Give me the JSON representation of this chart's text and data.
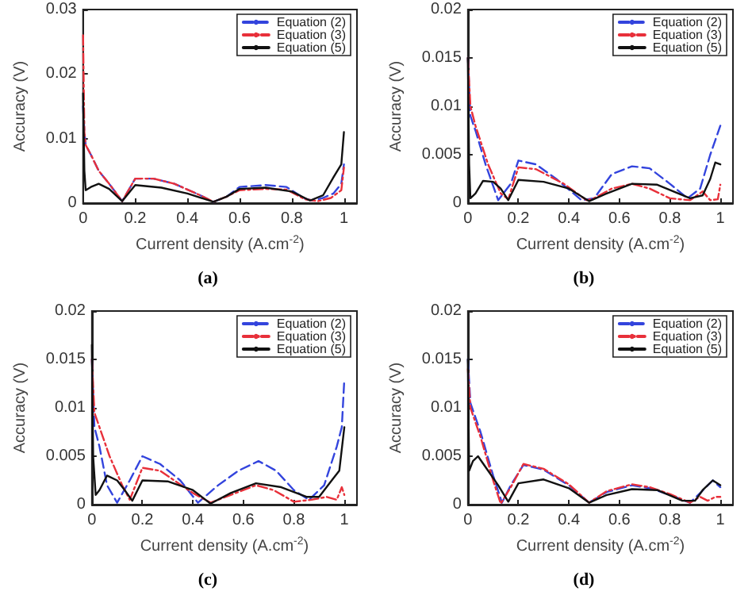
{
  "chart_data": [
    {
      "type": "line",
      "title": "(a)",
      "xlabel": "Current density (A.cm$^{-2}$)",
      "ylabel": "Accuracy (V)",
      "xlim": [
        0,
        1.05
      ],
      "xticks": [
        0,
        0.2,
        0.4,
        0.6,
        0.8,
        1
      ],
      "ylim": [
        0,
        0.03
      ],
      "yticks": [
        0,
        0.01,
        0.02,
        0.03
      ],
      "grid": false,
      "legend": "top right",
      "marker": "none",
      "series": [
        {
          "name": "Equation (2)",
          "color": "#3344dd",
          "line_style": "dashed",
          "x": [
            0,
            0.005,
            0.01,
            0.03,
            0.06,
            0.1,
            0.15,
            0.2,
            0.27,
            0.35,
            0.45,
            0.5,
            0.55,
            0.6,
            0.7,
            0.78,
            0.85,
            0.88,
            0.92,
            0.96,
            0.99,
            1.0
          ],
          "values": [
            0.015,
            0.011,
            0.009,
            0.0075,
            0.005,
            0.003,
            0.0003,
            0.0038,
            0.0038,
            0.003,
            0.0012,
            0.0002,
            0.001,
            0.0025,
            0.0028,
            0.0025,
            0.0007,
            0.0004,
            0.0008,
            0.0015,
            0.003,
            0.006
          ]
        },
        {
          "name": "Equation (3)",
          "color": "#e8303a",
          "line_style": "dashdot",
          "x": [
            0,
            0.005,
            0.01,
            0.03,
            0.06,
            0.1,
            0.15,
            0.2,
            0.27,
            0.35,
            0.45,
            0.5,
            0.55,
            0.6,
            0.7,
            0.78,
            0.85,
            0.9,
            0.95,
            0.99,
            1.0
          ],
          "values": [
            0.026,
            0.011,
            0.009,
            0.0075,
            0.005,
            0.003,
            0.0003,
            0.0038,
            0.0038,
            0.003,
            0.0012,
            0.0002,
            0.001,
            0.002,
            0.0022,
            0.0021,
            0.0006,
            0.0003,
            0.0008,
            0.002,
            0.0055
          ]
        },
        {
          "name": "Equation (5)",
          "color": "#111111",
          "line_style": "solid",
          "x": [
            0,
            0.005,
            0.01,
            0.03,
            0.06,
            0.1,
            0.15,
            0.2,
            0.3,
            0.4,
            0.5,
            0.55,
            0.6,
            0.7,
            0.8,
            0.87,
            0.92,
            0.96,
            0.99,
            1.0
          ],
          "values": [
            0.017,
            0.005,
            0.002,
            0.0025,
            0.003,
            0.0022,
            0.0003,
            0.0028,
            0.0024,
            0.0015,
            0.0002,
            0.001,
            0.0022,
            0.0024,
            0.0018,
            0.0004,
            0.0012,
            0.004,
            0.006,
            0.011
          ]
        }
      ]
    },
    {
      "type": "line",
      "title": "(b)",
      "xlabel": "Current density (A.cm$^{-2}$)",
      "ylabel": "Accuracy (V)",
      "xlim": [
        0,
        1.05
      ],
      "xticks": [
        0,
        0.2,
        0.4,
        0.6,
        0.8,
        1
      ],
      "ylim": [
        0,
        0.02
      ],
      "yticks": [
        0,
        0.005,
        0.01,
        0.015,
        0.02
      ],
      "grid": false,
      "legend": "top right",
      "marker": "none",
      "series": [
        {
          "name": "Equation (2)",
          "color": "#3344dd",
          "line_style": "dashed",
          "x": [
            0,
            0.01,
            0.03,
            0.07,
            0.12,
            0.17,
            0.2,
            0.27,
            0.35,
            0.45,
            0.5,
            0.57,
            0.65,
            0.72,
            0.8,
            0.87,
            0.92,
            0.96,
            1.0
          ],
          "values": [
            0.015,
            0.009,
            0.0075,
            0.004,
            0.0003,
            0.002,
            0.0044,
            0.004,
            0.0025,
            0.0003,
            0.0005,
            0.003,
            0.0038,
            0.0036,
            0.002,
            0.0005,
            0.0015,
            0.005,
            0.008
          ]
        },
        {
          "name": "Equation (3)",
          "color": "#e8303a",
          "line_style": "dashdot",
          "x": [
            0,
            0.01,
            0.03,
            0.08,
            0.13,
            0.16,
            0.2,
            0.27,
            0.38,
            0.47,
            0.5,
            0.57,
            0.65,
            0.72,
            0.8,
            0.88,
            0.93,
            0.96,
            0.99,
            1.0
          ],
          "values": [
            0.015,
            0.01,
            0.008,
            0.004,
            0.001,
            0.0004,
            0.0037,
            0.0035,
            0.002,
            0.0003,
            0.0005,
            0.0015,
            0.002,
            0.0015,
            0.0005,
            0.0003,
            0.0012,
            0.0003,
            0.0004,
            0.0019
          ]
        },
        {
          "name": "Equation (5)",
          "color": "#111111",
          "line_style": "solid",
          "x": [
            0,
            0.005,
            0.01,
            0.03,
            0.06,
            0.1,
            0.13,
            0.16,
            0.2,
            0.3,
            0.4,
            0.48,
            0.55,
            0.65,
            0.75,
            0.88,
            0.93,
            0.96,
            0.98,
            1.0
          ],
          "values": [
            0.015,
            0.004,
            0.0005,
            0.001,
            0.0023,
            0.0022,
            0.0015,
            0.0003,
            0.0024,
            0.0022,
            0.0015,
            0.0002,
            0.001,
            0.002,
            0.0019,
            0.0005,
            0.0008,
            0.0025,
            0.0042,
            0.004
          ]
        }
      ]
    },
    {
      "type": "line",
      "title": "(c)",
      "xlabel": "Current density (A.cm$^{-2}$)",
      "ylabel": "Accuracy (V)",
      "xlim": [
        0,
        1.05
      ],
      "xticks": [
        0,
        0.2,
        0.4,
        0.6,
        0.8,
        1
      ],
      "ylim": [
        0,
        0.02
      ],
      "yticks": [
        0,
        0.005,
        0.01,
        0.015,
        0.02
      ],
      "grid": false,
      "legend": "top right",
      "marker": "none",
      "series": [
        {
          "name": "Equation (2)",
          "color": "#3344dd",
          "line_style": "dashed",
          "x": [
            0,
            0.01,
            0.03,
            0.06,
            0.1,
            0.15,
            0.2,
            0.27,
            0.35,
            0.42,
            0.5,
            0.58,
            0.66,
            0.73,
            0.8,
            0.86,
            0.92,
            0.97,
            0.99,
            1.0
          ],
          "values": [
            0.015,
            0.008,
            0.006,
            0.002,
            0.0002,
            0.0025,
            0.005,
            0.0042,
            0.0025,
            0.0002,
            0.002,
            0.0035,
            0.0045,
            0.0035,
            0.0015,
            0.0005,
            0.002,
            0.006,
            0.008,
            0.013
          ]
        },
        {
          "name": "Equation (3)",
          "color": "#e8303a",
          "line_style": "dashdot",
          "x": [
            0,
            0.01,
            0.03,
            0.07,
            0.12,
            0.15,
            0.2,
            0.27,
            0.4,
            0.47,
            0.55,
            0.65,
            0.72,
            0.8,
            0.87,
            0.93,
            0.97,
            0.99,
            1.0
          ],
          "values": [
            0.015,
            0.0095,
            0.008,
            0.005,
            0.002,
            0.0005,
            0.0038,
            0.0035,
            0.0012,
            0.0002,
            0.001,
            0.002,
            0.0015,
            0.0003,
            0.0005,
            0.0008,
            0.0005,
            0.0018,
            0.001
          ]
        },
        {
          "name": "Equation (5)",
          "color": "#111111",
          "line_style": "solid",
          "x": [
            0,
            0.005,
            0.015,
            0.03,
            0.06,
            0.1,
            0.13,
            0.16,
            0.2,
            0.3,
            0.4,
            0.47,
            0.55,
            0.65,
            0.75,
            0.85,
            0.9,
            0.95,
            0.98,
            1.0
          ],
          "values": [
            0.0165,
            0.005,
            0.001,
            0.0015,
            0.003,
            0.0025,
            0.0015,
            0.0004,
            0.0025,
            0.0024,
            0.0015,
            0.0001,
            0.0012,
            0.0022,
            0.0018,
            0.0008,
            0.0008,
            0.0025,
            0.0035,
            0.008
          ]
        }
      ]
    },
    {
      "type": "line",
      "title": "(d)",
      "xlabel": "Current density (A.cm$^{-2}$)",
      "ylabel": "Accuracy (V)",
      "xlim": [
        0,
        1.05
      ],
      "xticks": [
        0,
        0.2,
        0.4,
        0.6,
        0.8,
        1
      ],
      "ylim": [
        0,
        0.02
      ],
      "yticks": [
        0,
        0.005,
        0.01,
        0.015,
        0.02
      ],
      "grid": false,
      "legend": "top right",
      "marker": "none",
      "series": [
        {
          "name": "Equation (2)",
          "color": "#3344dd",
          "line_style": "dashed",
          "x": [
            0,
            0.01,
            0.05,
            0.1,
            0.135,
            0.17,
            0.22,
            0.3,
            0.4,
            0.48,
            0.55,
            0.65,
            0.72,
            0.8,
            0.88,
            0.92,
            0.97,
            1.0
          ],
          "values": [
            0.015,
            0.0105,
            0.0075,
            0.003,
            0.0002,
            0.002,
            0.0041,
            0.0036,
            0.002,
            0.0002,
            0.0013,
            0.002,
            0.0017,
            0.001,
            0.0002,
            0.0012,
            0.0025,
            0.0018
          ]
        },
        {
          "name": "Equation (3)",
          "color": "#e8303a",
          "line_style": "dashdot",
          "x": [
            0,
            0.01,
            0.05,
            0.1,
            0.13,
            0.17,
            0.22,
            0.3,
            0.4,
            0.48,
            0.55,
            0.65,
            0.72,
            0.8,
            0.88,
            0.92,
            0.95,
            0.98,
            1.0
          ],
          "values": [
            0.014,
            0.01,
            0.007,
            0.0025,
            0.0001,
            0.0018,
            0.0042,
            0.0037,
            0.0021,
            0.0002,
            0.0014,
            0.0021,
            0.0018,
            0.0011,
            0.0002,
            0.0008,
            0.0004,
            0.0008,
            0.0008
          ]
        },
        {
          "name": "Equation (5)",
          "color": "#111111",
          "line_style": "solid",
          "x": [
            0,
            0.005,
            0.02,
            0.04,
            0.08,
            0.12,
            0.16,
            0.2,
            0.3,
            0.4,
            0.48,
            0.55,
            0.65,
            0.75,
            0.85,
            0.9,
            0.93,
            0.97,
            1.0
          ],
          "values": [
            0.015,
            0.0035,
            0.0045,
            0.005,
            0.0035,
            0.002,
            0.0003,
            0.0022,
            0.0026,
            0.0017,
            0.0002,
            0.001,
            0.0016,
            0.0015,
            0.0004,
            0.0004,
            0.0015,
            0.0025,
            0.002
          ]
        }
      ]
    }
  ]
}
